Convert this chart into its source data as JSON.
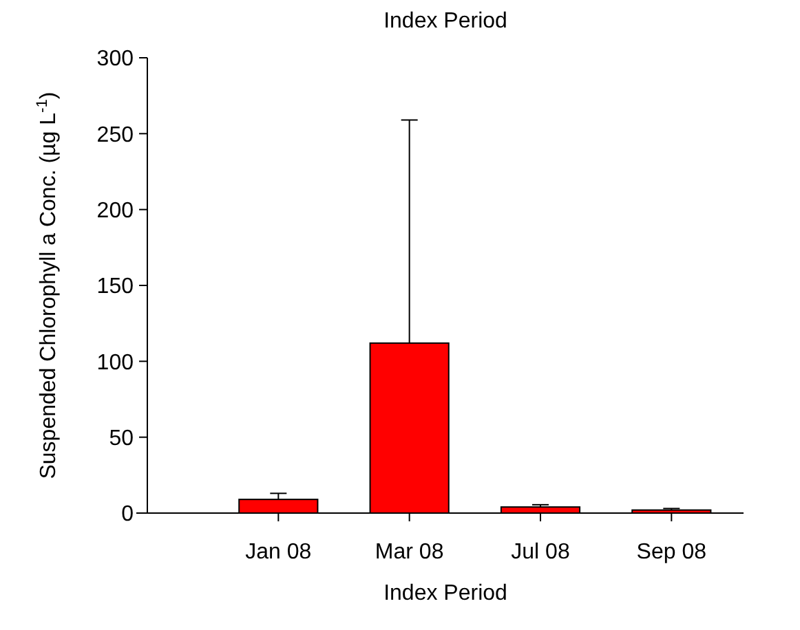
{
  "chart_data": {
    "type": "bar",
    "title": "Index Period",
    "xlabel": "Index Period",
    "ylabel": "Suspended Chlorophyll a Conc. (µg L$^{-1}$)",
    "categories": [
      "Jan 08",
      "Mar 08",
      "Jul 08",
      "Sep 08"
    ],
    "values": [
      9,
      112,
      4,
      2
    ],
    "errors": [
      4,
      147,
      1.5,
      1
    ],
    "color": "#ff0000",
    "ylim": [
      0,
      300
    ],
    "yticks": [
      0,
      50,
      100,
      150,
      200,
      250,
      300
    ]
  }
}
